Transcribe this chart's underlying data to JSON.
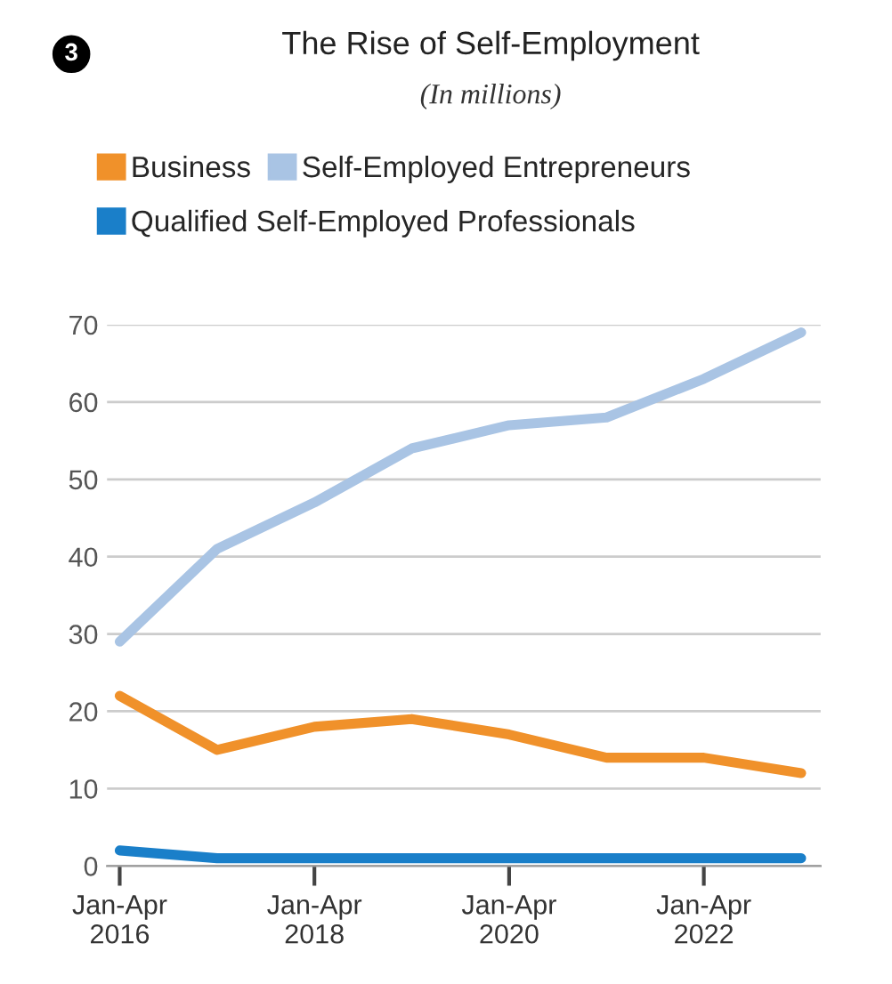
{
  "chart_data": {
    "type": "line",
    "title": "The Rise of Self-Employment",
    "subtitle": "(In millions)",
    "annotations": [
      "3"
    ],
    "categories": [
      "Jan-Apr\n2016",
      null,
      "Jan-Apr\n2018",
      null,
      "Jan-Apr\n2020",
      null,
      "Jan-Apr\n2022",
      null
    ],
    "series": [
      {
        "name": "Business",
        "color": "#f0912a",
        "values": [
          22,
          15,
          18,
          19,
          17,
          14,
          14,
          12
        ]
      },
      {
        "name": "Self-Employed Entrepreneurs",
        "color": "#a9c4e4",
        "values": [
          29,
          41,
          47,
          54,
          57,
          58,
          63,
          69
        ]
      },
      {
        "name": "Qualified Self-Employed Professionals",
        "color": "#1a7fc9",
        "values": [
          2,
          1,
          1,
          1,
          1,
          1,
          1,
          1
        ]
      }
    ],
    "ylim": [
      0,
      70
    ],
    "yticks": [
      0,
      10,
      20,
      30,
      40,
      50,
      60,
      70
    ],
    "grid": "y",
    "legend": "top",
    "marker": "none",
    "line_style": "solid"
  }
}
